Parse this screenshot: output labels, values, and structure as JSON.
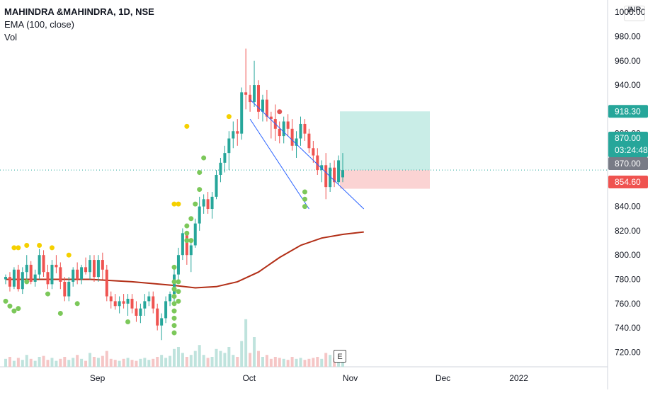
{
  "legend": {
    "title": "MAHINDRA &MAHINDRA, 1D, NSE",
    "ema": "EMA (100, close)",
    "vol": "Vol"
  },
  "currency": "INR",
  "earnings_badge": "E",
  "colors": {
    "up": "#26a69a",
    "down": "#ef5350",
    "ema": "#b22e16",
    "channel": "#2962ff",
    "marker_yellow": "#f5d000",
    "marker_green": "#7cc85a",
    "marker_red": "#e05555",
    "profit_zone": "#c9ede7",
    "loss_zone": "#fbd3d3"
  },
  "chart_data": {
    "type": "candlestick",
    "x_ticks": [
      "Sep",
      "Oct",
      "Nov",
      "Dec",
      "2022"
    ],
    "y_ticks": [
      "720.00",
      "740.00",
      "760.00",
      "780.00",
      "800.00",
      "820.00",
      "840.00",
      "860.00",
      "880.00",
      "900.00",
      "920.00",
      "940.00",
      "960.00",
      "980.00",
      "1000.00"
    ],
    "ylim": [
      708,
      1010
    ],
    "price_tags": [
      {
        "label": "918.30",
        "value": 918.3,
        "color": "#26a69a"
      },
      {
        "label": "870.00",
        "value": 870.0,
        "color": "#26a69a",
        "sub": "03:24:48"
      },
      {
        "label": "870.00",
        "value": 870.0,
        "color": "#787b86"
      },
      {
        "label": "854.60",
        "value": 854.6,
        "color": "#ef5350"
      }
    ],
    "current_price": 870.0,
    "position": {
      "entry": 870.0,
      "target": 918.3,
      "stop": 854.6
    },
    "candles": [
      [
        0,
        780,
        784,
        776,
        782
      ],
      [
        1,
        782,
        786,
        770,
        774
      ],
      [
        2,
        774,
        790,
        772,
        788
      ],
      [
        3,
        788,
        792,
        770,
        772
      ],
      [
        4,
        772,
        790,
        768,
        786
      ],
      [
        5,
        786,
        800,
        780,
        792
      ],
      [
        6,
        792,
        795,
        776,
        778
      ],
      [
        7,
        778,
        788,
        774,
        784
      ],
      [
        8,
        784,
        805,
        780,
        800
      ],
      [
        9,
        800,
        804,
        782,
        786
      ],
      [
        10,
        786,
        792,
        772,
        776
      ],
      [
        11,
        776,
        796,
        772,
        792
      ],
      [
        12,
        792,
        800,
        785,
        790
      ],
      [
        13,
        790,
        794,
        772,
        778
      ],
      [
        14,
        778,
        782,
        762,
        766
      ],
      [
        15,
        766,
        782,
        762,
        778
      ],
      [
        16,
        778,
        790,
        774,
        788
      ],
      [
        17,
        788,
        794,
        776,
        780
      ],
      [
        18,
        780,
        792,
        776,
        790
      ],
      [
        19,
        790,
        798,
        784,
        786
      ],
      [
        20,
        786,
        800,
        780,
        796
      ],
      [
        21,
        796,
        800,
        778,
        782
      ],
      [
        22,
        782,
        800,
        778,
        796
      ],
      [
        23,
        796,
        802,
        780,
        788
      ],
      [
        24,
        788,
        792,
        762,
        766
      ],
      [
        25,
        766,
        770,
        756,
        762
      ],
      [
        26,
        762,
        768,
        755,
        758
      ],
      [
        27,
        758,
        766,
        752,
        762
      ],
      [
        28,
        762,
        768,
        756,
        760
      ],
      [
        29,
        760,
        768,
        750,
        764
      ],
      [
        30,
        764,
        768,
        752,
        756
      ],
      [
        31,
        756,
        762,
        745,
        750
      ],
      [
        32,
        750,
        760,
        744,
        756
      ],
      [
        33,
        756,
        768,
        750,
        762
      ],
      [
        34,
        762,
        770,
        758,
        766
      ],
      [
        35,
        766,
        770,
        752,
        756
      ],
      [
        36,
        756,
        760,
        738,
        742
      ],
      [
        37,
        742,
        752,
        730,
        748
      ],
      [
        38,
        748,
        766,
        744,
        762
      ],
      [
        39,
        762,
        770,
        758,
        768
      ],
      [
        40,
        768,
        790,
        762,
        784
      ],
      [
        41,
        784,
        806,
        778,
        800
      ],
      [
        42,
        800,
        822,
        796,
        818
      ],
      [
        43,
        818,
        820,
        792,
        800
      ],
      [
        44,
        800,
        812,
        786,
        808
      ],
      [
        45,
        808,
        830,
        806,
        826
      ],
      [
        46,
        826,
        848,
        820,
        840
      ],
      [
        47,
        840,
        850,
        834,
        846
      ],
      [
        48,
        846,
        852,
        834,
        838
      ],
      [
        49,
        838,
        852,
        830,
        848
      ],
      [
        50,
        848,
        870,
        846,
        866
      ],
      [
        51,
        866,
        880,
        860,
        876
      ],
      [
        52,
        876,
        890,
        868,
        884
      ],
      [
        53,
        884,
        902,
        870,
        896
      ],
      [
        54,
        896,
        910,
        888,
        902
      ],
      [
        55,
        902,
        912,
        890,
        900
      ],
      [
        56,
        900,
        938,
        895,
        934
      ],
      [
        57,
        934,
        970,
        920,
        932
      ],
      [
        58,
        932,
        940,
        918,
        926
      ],
      [
        59,
        926,
        960,
        922,
        940
      ],
      [
        60,
        940,
        944,
        912,
        918
      ],
      [
        61,
        918,
        932,
        910,
        928
      ],
      [
        62,
        928,
        936,
        910,
        914
      ],
      [
        63,
        914,
        918,
        896,
        912
      ],
      [
        64,
        912,
        924,
        894,
        904
      ],
      [
        65,
        904,
        910,
        892,
        898
      ],
      [
        66,
        898,
        914,
        892,
        910
      ],
      [
        67,
        910,
        916,
        898,
        904
      ],
      [
        68,
        904,
        912,
        886,
        890
      ],
      [
        69,
        890,
        902,
        880,
        896
      ],
      [
        70,
        896,
        914,
        890,
        908
      ],
      [
        71,
        908,
        912,
        894,
        900
      ],
      [
        72,
        900,
        904,
        884,
        888
      ],
      [
        73,
        888,
        894,
        876,
        882
      ],
      [
        74,
        882,
        888,
        866,
        870
      ],
      [
        75,
        870,
        878,
        860,
        874
      ],
      [
        76,
        874,
        884,
        846,
        856
      ],
      [
        77,
        856,
        876,
        852,
        872
      ],
      [
        78,
        872,
        878,
        856,
        860
      ],
      [
        79,
        860,
        882,
        858,
        878
      ],
      [
        80,
        864,
        884,
        860,
        870
      ]
    ],
    "ema": [
      [
        0,
        780
      ],
      [
        10,
        780
      ],
      [
        20,
        780
      ],
      [
        30,
        778
      ],
      [
        40,
        775
      ],
      [
        45,
        773
      ],
      [
        50,
        774
      ],
      [
        55,
        778
      ],
      [
        60,
        786
      ],
      [
        65,
        798
      ],
      [
        70,
        808
      ],
      [
        75,
        814
      ],
      [
        80,
        817
      ],
      [
        85,
        819
      ]
    ],
    "volume": [
      [
        0,
        8,
        0
      ],
      [
        1,
        10,
        1
      ],
      [
        2,
        6,
        0
      ],
      [
        3,
        9,
        1
      ],
      [
        4,
        7,
        0
      ],
      [
        5,
        12,
        0
      ],
      [
        6,
        8,
        1
      ],
      [
        7,
        6,
        0
      ],
      [
        8,
        10,
        0
      ],
      [
        9,
        11,
        1
      ],
      [
        10,
        7,
        1
      ],
      [
        11,
        9,
        0
      ],
      [
        12,
        6,
        0
      ],
      [
        13,
        8,
        1
      ],
      [
        14,
        10,
        1
      ],
      [
        15,
        7,
        0
      ],
      [
        16,
        9,
        0
      ],
      [
        17,
        12,
        1
      ],
      [
        18,
        8,
        0
      ],
      [
        19,
        6,
        1
      ],
      [
        20,
        14,
        0
      ],
      [
        21,
        10,
        1
      ],
      [
        22,
        9,
        0
      ],
      [
        23,
        11,
        1
      ],
      [
        24,
        16,
        1
      ],
      [
        25,
        8,
        1
      ],
      [
        26,
        7,
        1
      ],
      [
        27,
        6,
        0
      ],
      [
        28,
        8,
        1
      ],
      [
        29,
        9,
        0
      ],
      [
        30,
        7,
        1
      ],
      [
        31,
        6,
        1
      ],
      [
        32,
        8,
        0
      ],
      [
        33,
        9,
        0
      ],
      [
        34,
        7,
        0
      ],
      [
        35,
        8,
        1
      ],
      [
        36,
        10,
        1
      ],
      [
        37,
        12,
        0
      ],
      [
        38,
        9,
        0
      ],
      [
        39,
        11,
        0
      ],
      [
        40,
        18,
        0
      ],
      [
        41,
        20,
        0
      ],
      [
        42,
        14,
        0
      ],
      [
        43,
        10,
        1
      ],
      [
        44,
        12,
        0
      ],
      [
        45,
        16,
        0
      ],
      [
        46,
        22,
        0
      ],
      [
        47,
        12,
        0
      ],
      [
        48,
        9,
        1
      ],
      [
        49,
        10,
        0
      ],
      [
        50,
        18,
        0
      ],
      [
        51,
        16,
        0
      ],
      [
        52,
        14,
        0
      ],
      [
        53,
        20,
        0
      ],
      [
        54,
        12,
        0
      ],
      [
        55,
        10,
        1
      ],
      [
        56,
        26,
        0
      ],
      [
        57,
        48,
        0
      ],
      [
        58,
        14,
        1
      ],
      [
        59,
        30,
        0
      ],
      [
        60,
        16,
        1
      ],
      [
        61,
        10,
        0
      ],
      [
        62,
        12,
        1
      ],
      [
        63,
        8,
        1
      ],
      [
        64,
        10,
        1
      ],
      [
        65,
        9,
        1
      ],
      [
        66,
        8,
        0
      ],
      [
        67,
        7,
        1
      ],
      [
        68,
        10,
        1
      ],
      [
        69,
        8,
        0
      ],
      [
        70,
        9,
        0
      ],
      [
        71,
        7,
        1
      ],
      [
        72,
        8,
        1
      ],
      [
        73,
        9,
        1
      ],
      [
        74,
        10,
        1
      ],
      [
        75,
        8,
        0
      ],
      [
        76,
        14,
        1
      ],
      [
        77,
        12,
        0
      ],
      [
        78,
        9,
        1
      ],
      [
        79,
        10,
        0
      ],
      [
        80,
        8,
        0
      ]
    ],
    "markers_above_yellow": [
      [
        2,
        806
      ],
      [
        3,
        806
      ],
      [
        5,
        808
      ],
      [
        8,
        808
      ],
      [
        11,
        806
      ],
      [
        15,
        800
      ],
      [
        40,
        842
      ],
      [
        41,
        842
      ],
      [
        43,
        906
      ],
      [
        53,
        914
      ]
    ],
    "markers_below_green": [
      [
        0,
        762
      ],
      [
        1,
        758
      ],
      [
        2,
        754
      ],
      [
        3,
        756
      ],
      [
        5,
        778
      ],
      [
        10,
        768
      ],
      [
        13,
        752
      ],
      [
        17,
        760
      ],
      [
        29,
        745
      ],
      [
        40,
        790
      ],
      [
        40,
        778
      ],
      [
        40,
        772
      ],
      [
        40,
        766
      ],
      [
        40,
        760
      ],
      [
        40,
        754
      ],
      [
        40,
        748
      ],
      [
        40,
        742
      ],
      [
        40,
        736
      ],
      [
        41,
        778
      ],
      [
        41,
        770
      ],
      [
        41,
        762
      ],
      [
        43,
        824
      ],
      [
        43,
        818
      ],
      [
        43,
        812
      ],
      [
        44,
        830
      ],
      [
        44,
        812
      ],
      [
        45,
        842
      ],
      [
        46,
        854
      ],
      [
        46,
        868
      ],
      [
        47,
        880
      ],
      [
        71,
        852
      ],
      [
        71,
        846
      ],
      [
        71,
        840
      ]
    ],
    "markers_red": [
      [
        65,
        918
      ]
    ],
    "channel": {
      "upper": [
        [
          58,
          928
        ],
        [
          85,
          838
        ]
      ],
      "lower": [
        [
          58,
          912
        ],
        [
          72,
          838
        ]
      ]
    },
    "x_tick_positions": [
      8,
      44,
      68,
      90,
      108
    ]
  }
}
